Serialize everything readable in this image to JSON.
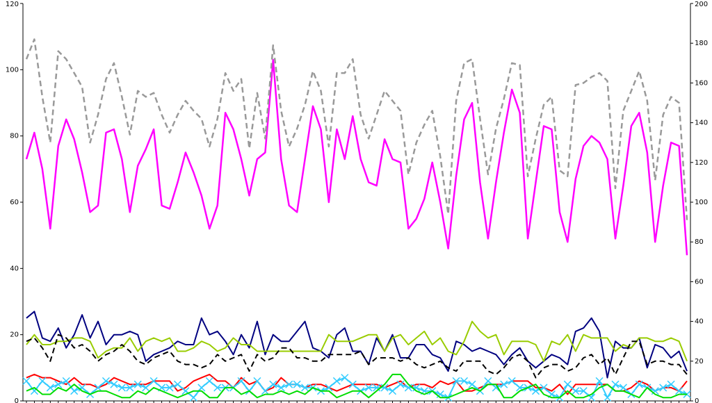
{
  "chart_data": {
    "type": "line",
    "categories": [
      null,
      null,
      null,
      null,
      null,
      null,
      null,
      null,
      null,
      null,
      null,
      null,
      null,
      null,
      null,
      null,
      null,
      null,
      null,
      null,
      null,
      null,
      null,
      null,
      null,
      null,
      null,
      null,
      null,
      null,
      null,
      null,
      null,
      null,
      null,
      null,
      null,
      null,
      null,
      null,
      null,
      null,
      null,
      null,
      null,
      null,
      null,
      null,
      null,
      null,
      null,
      null,
      null,
      null,
      null,
      null,
      null,
      null,
      null,
      null,
      null,
      null,
      null,
      null,
      null,
      null,
      null,
      null,
      null,
      null,
      null,
      null,
      null,
      null,
      null,
      null,
      null,
      null,
      null,
      null,
      null,
      null,
      null,
      null
    ],
    "ylim": [
      0,
      120
    ],
    "yticks": [
      0,
      20,
      40,
      60,
      80,
      100,
      120
    ],
    "y2lim": [
      0,
      200
    ],
    "y2ticks": [
      0,
      20,
      40,
      60,
      80,
      100,
      120,
      140,
      160,
      180,
      200
    ],
    "grid": false,
    "series": [
      {
        "color": "#ff00ff",
        "dash": false,
        "width": 2.5,
        "values": [
          73,
          81,
          70,
          52,
          77,
          85,
          79,
          69,
          57,
          59,
          81,
          82,
          73,
          57,
          71,
          76,
          82,
          59,
          58,
          66,
          75,
          69,
          62,
          52,
          59,
          87,
          82,
          73,
          62,
          73,
          75,
          103,
          73,
          59,
          57,
          73,
          89,
          82,
          60,
          82,
          73,
          86,
          73,
          66,
          65,
          79,
          73,
          72,
          52,
          55,
          61,
          72,
          60,
          46,
          68,
          85,
          90,
          66,
          49,
          66,
          81,
          94,
          87,
          49,
          66,
          83,
          82,
          57,
          48,
          67,
          77,
          80,
          78,
          73,
          49,
          65,
          83,
          87,
          75,
          48,
          65,
          78,
          77,
          44
        ]
      },
      {
        "color": "#999999",
        "dash": true,
        "width": 2.5,
        "axis": "y2",
        "values": [
          172,
          182,
          153,
          130,
          176,
          172,
          165,
          158,
          130,
          144,
          162,
          170,
          153,
          134,
          156,
          153,
          155,
          144,
          135,
          144,
          151,
          146,
          142,
          128,
          142,
          165,
          156,
          162,
          127,
          155,
          132,
          179,
          146,
          128,
          137,
          149,
          166,
          156,
          128,
          165,
          165,
          172,
          144,
          132,
          144,
          156,
          151,
          146,
          114,
          130,
          139,
          146,
          123,
          94,
          151,
          170,
          172,
          142,
          114,
          137,
          152,
          170,
          169,
          113,
          132,
          149,
          153,
          116,
          113,
          159,
          160,
          163,
          165,
          161,
          107,
          146,
          156,
          166,
          151,
          111,
          144,
          153,
          150,
          91
        ]
      },
      {
        "color": "#000080",
        "dash": false,
        "width": 2,
        "values": [
          25,
          27,
          19,
          18,
          22,
          16,
          20,
          26,
          19,
          24,
          17,
          20,
          20,
          21,
          20,
          12,
          14,
          15,
          16,
          18,
          17,
          17,
          25,
          20,
          21,
          18,
          14,
          20,
          16,
          24,
          14,
          20,
          18,
          18,
          21,
          24,
          16,
          15,
          13,
          20,
          22,
          15,
          15,
          11,
          19,
          15,
          20,
          13,
          13,
          17,
          17,
          14,
          13,
          9,
          18,
          17,
          15,
          16,
          15,
          14,
          11,
          14,
          16,
          12,
          10,
          12,
          14,
          13,
          11,
          21,
          22,
          25,
          21,
          7,
          18,
          16,
          16,
          19,
          10,
          17,
          16,
          13,
          15,
          9
        ]
      },
      {
        "color": "#99cc00",
        "dash": false,
        "width": 2,
        "values": [
          17,
          20,
          17,
          17,
          18,
          18,
          19,
          19,
          18,
          13,
          15,
          16,
          16,
          19,
          15,
          18,
          19,
          18,
          19,
          15,
          15,
          16,
          18,
          17,
          15,
          16,
          19,
          17,
          17,
          15,
          15,
          15,
          15,
          15,
          15,
          15,
          15,
          15,
          20,
          18,
          18,
          18,
          19,
          20,
          20,
          15,
          19,
          20,
          17,
          19,
          21,
          17,
          19,
          15,
          14,
          18,
          24,
          21,
          19,
          20,
          14,
          18,
          18,
          18,
          17,
          12,
          18,
          17,
          20,
          15,
          20,
          19,
          19,
          19,
          15,
          17,
          16,
          19,
          19,
          18,
          18,
          19,
          18,
          12
        ]
      },
      {
        "color": "#000000",
        "dash": true,
        "width": 2,
        "values": [
          18,
          19,
          16,
          12,
          20,
          19,
          16,
          17,
          15,
          12,
          14,
          15,
          17,
          15,
          12,
          11,
          13,
          14,
          15,
          12,
          11,
          11,
          10,
          11,
          14,
          12,
          13,
          14,
          9,
          14,
          12,
          13,
          16,
          16,
          13,
          13,
          12,
          12,
          14,
          14,
          14,
          14,
          15,
          11,
          13,
          13,
          13,
          12,
          13,
          11,
          10,
          11,
          12,
          10,
          9,
          12,
          12,
          12,
          9,
          8,
          10,
          13,
          14,
          12,
          7,
          10,
          11,
          11,
          9,
          10,
          13,
          14,
          11,
          13,
          8,
          13,
          18,
          18,
          11,
          12,
          12,
          11,
          11,
          8
        ]
      },
      {
        "color": "#ff0000",
        "dash": false,
        "width": 2,
        "values": [
          7,
          8,
          7,
          7,
          6,
          5,
          7,
          5,
          5,
          4,
          5,
          7,
          6,
          5,
          5,
          5,
          6,
          6,
          6,
          3,
          4,
          6,
          7,
          8,
          6,
          6,
          4,
          7,
          5,
          6,
          3,
          4,
          7,
          5,
          5,
          4,
          5,
          5,
          4,
          3,
          4,
          5,
          5,
          5,
          5,
          4,
          5,
          6,
          4,
          5,
          5,
          4,
          6,
          5,
          6,
          3,
          3,
          4,
          5,
          5,
          5,
          6,
          6,
          6,
          4,
          4,
          3,
          5,
          2,
          5,
          5,
          5,
          5,
          5,
          3,
          3,
          4,
          6,
          5,
          3,
          4,
          4,
          3,
          6
        ]
      },
      {
        "color": "#33ccff",
        "dash": false,
        "width": 2,
        "marker": "x",
        "values": [
          6,
          3,
          6,
          4,
          5,
          6,
          3,
          4,
          2,
          4,
          6,
          5,
          4,
          4,
          5,
          4,
          6,
          4,
          4,
          5,
          3,
          1,
          4,
          6,
          4,
          4,
          4,
          6,
          3,
          6,
          3,
          5,
          4,
          5,
          5,
          4,
          4,
          3,
          4,
          6,
          7,
          5,
          3,
          4,
          4,
          4,
          3,
          5,
          4,
          4,
          3,
          3,
          2,
          1,
          6,
          6,
          5,
          3,
          6,
          4,
          5,
          6,
          4,
          4,
          3,
          4,
          2,
          1,
          5,
          3,
          3,
          1,
          6,
          1,
          5,
          4,
          2,
          5,
          4,
          3,
          4,
          5,
          3,
          2
        ]
      },
      {
        "color": "#00dd00",
        "dash": false,
        "width": 2,
        "values": [
          3,
          4,
          2,
          2,
          4,
          3,
          5,
          3,
          2,
          3,
          3,
          2,
          1,
          1,
          3,
          2,
          4,
          3,
          2,
          1,
          2,
          3,
          3,
          1,
          1,
          4,
          4,
          2,
          3,
          1,
          2,
          2,
          3,
          2,
          3,
          2,
          4,
          3,
          3,
          1,
          2,
          3,
          3,
          1,
          3,
          5,
          8,
          8,
          5,
          3,
          2,
          3,
          1,
          1,
          2,
          3,
          4,
          3,
          5,
          5,
          1,
          1,
          3,
          4,
          5,
          2,
          1,
          1,
          3,
          1,
          1,
          2,
          4,
          5,
          3,
          3,
          2,
          1,
          4,
          2,
          1,
          1,
          2,
          2
        ]
      }
    ]
  }
}
